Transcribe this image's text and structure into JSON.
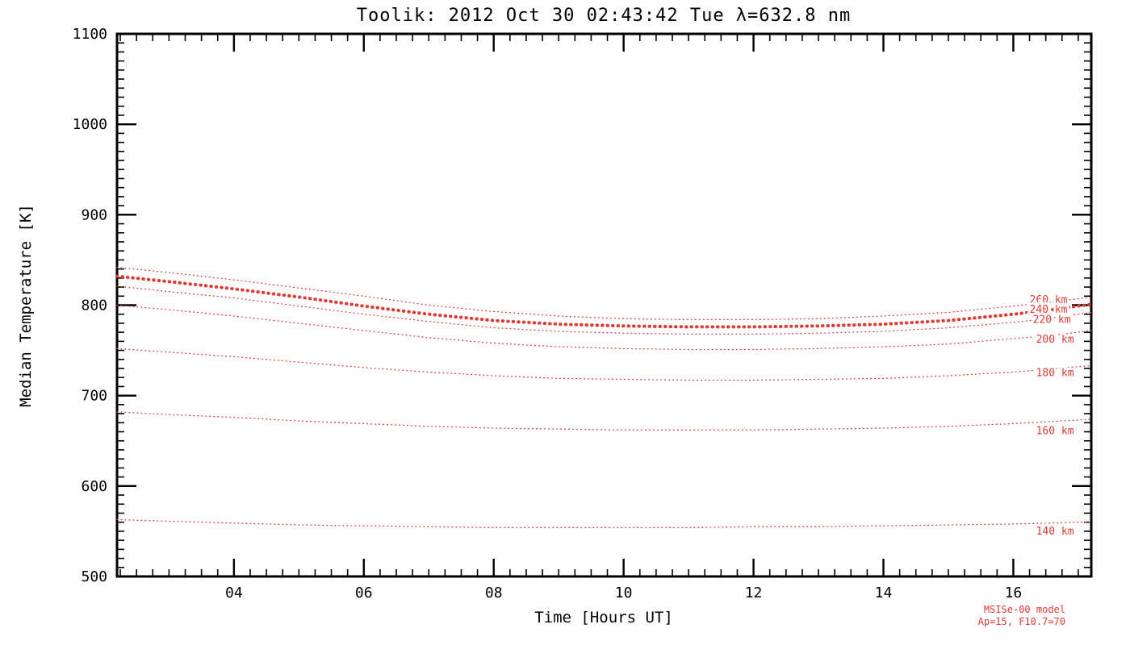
{
  "title": "Toolik: 2012 Oct 30 02:43:42 Tue λ=632.8 nm",
  "footer": {
    "line1": "MSISe-00 model",
    "line2": "Ap=15, F10.7=70"
  },
  "colors": {
    "curve": "#dd3b33",
    "axis": "#000000",
    "background": "#ffffff"
  },
  "chart_data": {
    "type": "line",
    "title": "Toolik: 2012 Oct 30 02:43:42 Tue λ=632.8 nm",
    "xlabel": "Time [Hours UT]",
    "ylabel": "Median Temperature [K]",
    "xlim": [
      2.2,
      17.2
    ],
    "ylim": [
      500,
      1100
    ],
    "x_major_ticks": [
      4,
      6,
      8,
      10,
      12,
      14,
      16
    ],
    "x_major_tick_labels": [
      "04",
      "06",
      "08",
      "10",
      "12",
      "14",
      "16"
    ],
    "x_minor_step": 0.25,
    "y_major_ticks": [
      500,
      600,
      700,
      800,
      900,
      1000,
      1100
    ],
    "y_major_tick_labels": [
      "500",
      "600",
      "700",
      "800",
      "900",
      "1000",
      "1100"
    ],
    "y_minor_step": 10,
    "grid": false,
    "legend_position": "on-curve-right",
    "x": [
      2.2,
      3,
      4,
      5,
      6,
      7,
      8,
      9,
      10,
      11,
      12,
      13,
      14,
      15,
      16,
      16.5,
      17,
      17.2
    ],
    "series": [
      {
        "name": "260 km",
        "style": "dotted-thin",
        "label_x": 16.25,
        "label_y": 806,
        "values": [
          842,
          836,
          828,
          819,
          810,
          800,
          793,
          788,
          785,
          784,
          784,
          785,
          788,
          792,
          799,
          803,
          807,
          809
        ]
      },
      {
        "name": "240 km",
        "style": "dotted-thick",
        "label_x": 16.25,
        "label_y": 795,
        "values": [
          832,
          826,
          818,
          809,
          799,
          790,
          783,
          779,
          777,
          776,
          776,
          777,
          779,
          783,
          790,
          794,
          799,
          801
        ]
      },
      {
        "name": "220 km",
        "style": "dotted-thin",
        "label_x": 16.3,
        "label_y": 784,
        "values": [
          821,
          815,
          808,
          799,
          790,
          782,
          775,
          771,
          769,
          768,
          768,
          769,
          771,
          775,
          781,
          785,
          790,
          792
        ]
      },
      {
        "name": "200 km",
        "style": "dotted-thin",
        "label_x": 16.35,
        "label_y": 762,
        "values": [
          800,
          795,
          788,
          780,
          772,
          764,
          758,
          754,
          752,
          751,
          751,
          752,
          754,
          757,
          763,
          766,
          770,
          772
        ]
      },
      {
        "name": "180 km",
        "style": "dotted-thin",
        "label_x": 16.35,
        "label_y": 725,
        "values": [
          752,
          748,
          743,
          737,
          731,
          726,
          722,
          719,
          718,
          717,
          717,
          718,
          719,
          722,
          726,
          729,
          732,
          733
        ]
      },
      {
        "name": "160 km",
        "style": "dotted-thin",
        "label_x": 16.35,
        "label_y": 661,
        "values": [
          682,
          679,
          676,
          672,
          669,
          666,
          664,
          663,
          662,
          662,
          662,
          663,
          664,
          666,
          669,
          671,
          673,
          674
        ]
      },
      {
        "name": "140 km",
        "style": "dotted-thin",
        "label_x": 16.35,
        "label_y": 550,
        "values": [
          563,
          561,
          559,
          557,
          556,
          555,
          554,
          554,
          554,
          554,
          555,
          555,
          556,
          557,
          558,
          559,
          560,
          560
        ]
      }
    ]
  }
}
